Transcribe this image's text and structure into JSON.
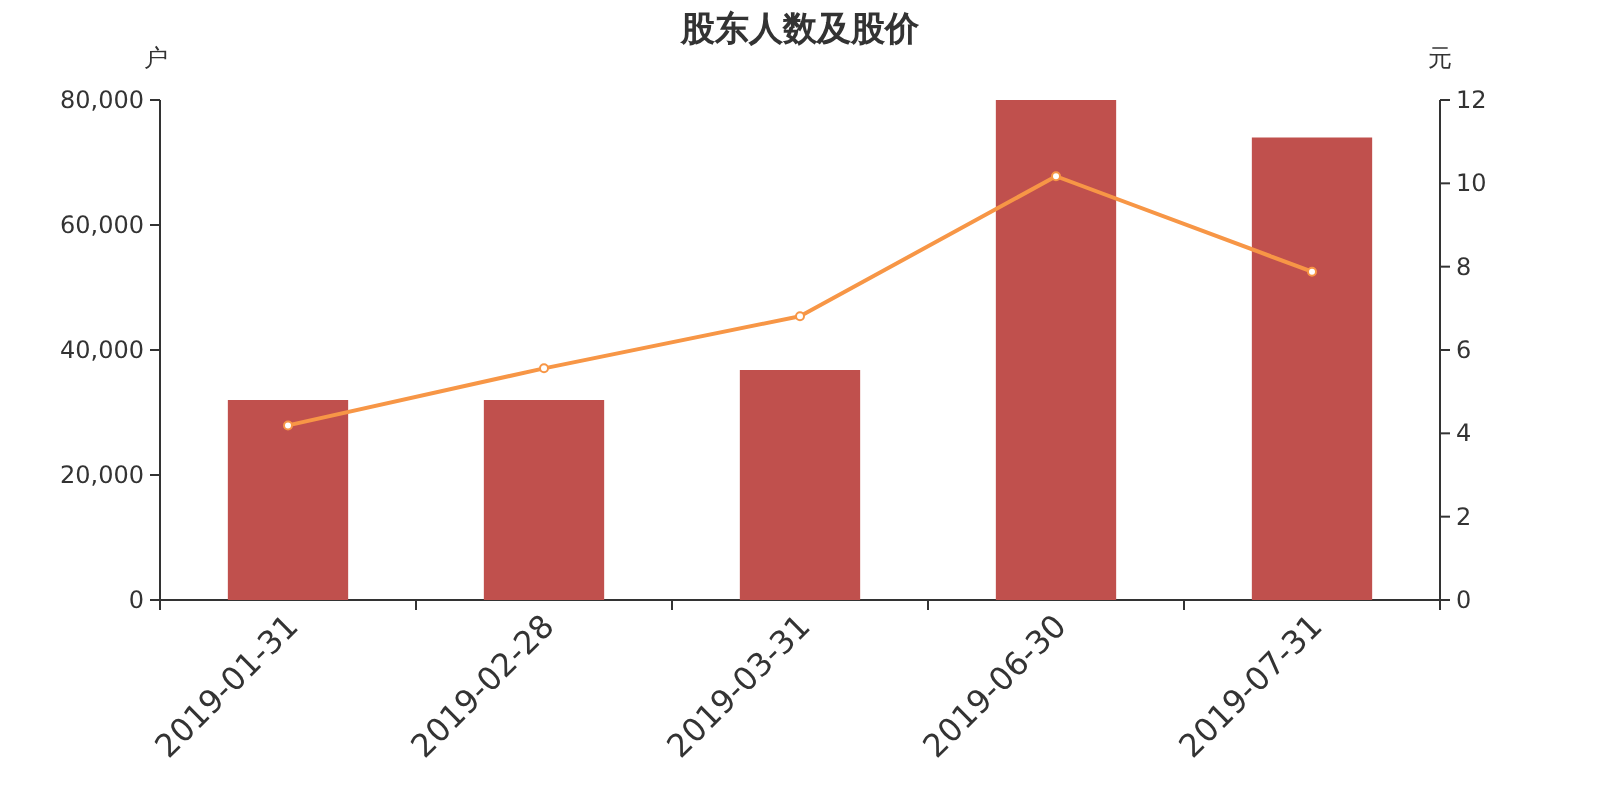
{
  "chart_data": {
    "type": "bar",
    "title": "股东人数及股价",
    "ylabel": "户",
    "y2label": "元",
    "categories": [
      "2019-01-31",
      "2019-02-28",
      "2019-03-31",
      "2019-06-30",
      "2019-07-31"
    ],
    "series": [
      {
        "color": "#c0504d",
        "values": [
          32000,
          32000,
          36800,
          80000,
          74000
        ]
      },
      {
        "type": "line",
        "axis": "y2",
        "color": "#f79646",
        "marker": "circle",
        "values": [
          4.19,
          5.56,
          6.81,
          10.17,
          7.88
        ]
      }
    ],
    "ylim": [
      0,
      80000
    ],
    "yticks": [
      {
        "value": 0,
        "label": "0"
      },
      {
        "value": 20000,
        "label": "20,000"
      },
      {
        "value": 40000,
        "label": "40,000"
      },
      {
        "value": 60000,
        "label": "60,000"
      },
      {
        "value": 80000,
        "label": "80,000"
      }
    ],
    "y2lim": [
      0,
      12
    ],
    "y2ticks": [
      0,
      2,
      4,
      6,
      8,
      10,
      12
    ],
    "grid": false
  }
}
